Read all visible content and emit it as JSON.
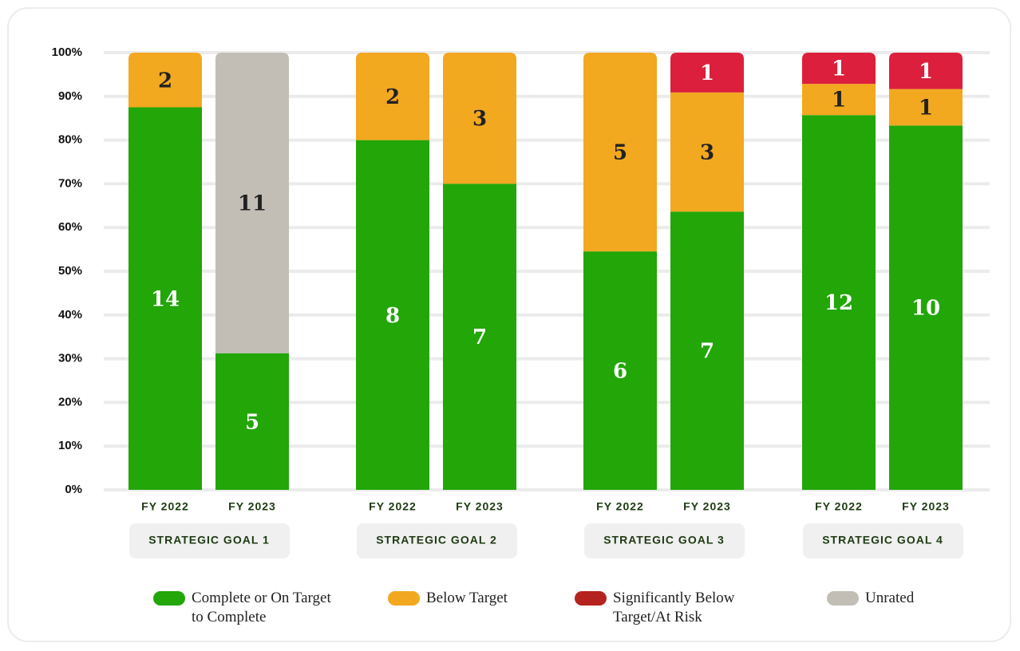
{
  "chart_data": {
    "type": "bar",
    "percent_stacked": true,
    "groups": [
      "STRATEGIC GOAL 1",
      "STRATEGIC GOAL 2",
      "STRATEGIC GOAL 3",
      "STRATEGIC GOAL 4"
    ],
    "categories": [
      [
        "FY 2022",
        "FY 2023"
      ],
      [
        "FY 2022",
        "FY 2023"
      ],
      [
        "FY 2022",
        "FY 2023"
      ],
      [
        "FY 2022",
        "FY 2023"
      ]
    ],
    "series": [
      {
        "name": "Complete or On Target to Complete",
        "color": "#22a608",
        "label_color": "#ffffff",
        "values": [
          [
            14,
            5
          ],
          [
            8,
            7
          ],
          [
            6,
            7
          ],
          [
            12,
            10
          ]
        ]
      },
      {
        "name": "Below Target",
        "color": "#f2a81f",
        "label_color": "#222222",
        "values": [
          [
            2,
            null
          ],
          [
            2,
            3
          ],
          [
            5,
            3
          ],
          [
            1,
            1
          ]
        ]
      },
      {
        "name": "Significantly Below Target/At Risk",
        "color": "#dc1f3c",
        "legend_color": "#b5231e",
        "label_color": "#ffffff",
        "values": [
          [
            null,
            null
          ],
          [
            null,
            null
          ],
          [
            null,
            1
          ],
          [
            1,
            1
          ]
        ]
      },
      {
        "name": "Unrated",
        "color": "#c2beb5",
        "label_color": "#222222",
        "values": [
          [
            null,
            11
          ],
          [
            null,
            null
          ],
          [
            null,
            null
          ],
          [
            null,
            null
          ]
        ]
      }
    ],
    "ylim": [
      0,
      100
    ],
    "yticks": [
      {
        "value": 0,
        "label": "0%"
      },
      {
        "value": 10,
        "label": "10%"
      },
      {
        "value": 20,
        "label": "20%"
      },
      {
        "value": 30,
        "label": "30%"
      },
      {
        "value": 40,
        "label": "40%"
      },
      {
        "value": 50,
        "label": "50%"
      },
      {
        "value": 60,
        "label": "60%"
      },
      {
        "value": 70,
        "label": "70%"
      },
      {
        "value": 80,
        "label": "80%"
      },
      {
        "value": 90,
        "label": "90%"
      },
      {
        "value": 100,
        "label": "100%"
      }
    ],
    "grid": true
  }
}
